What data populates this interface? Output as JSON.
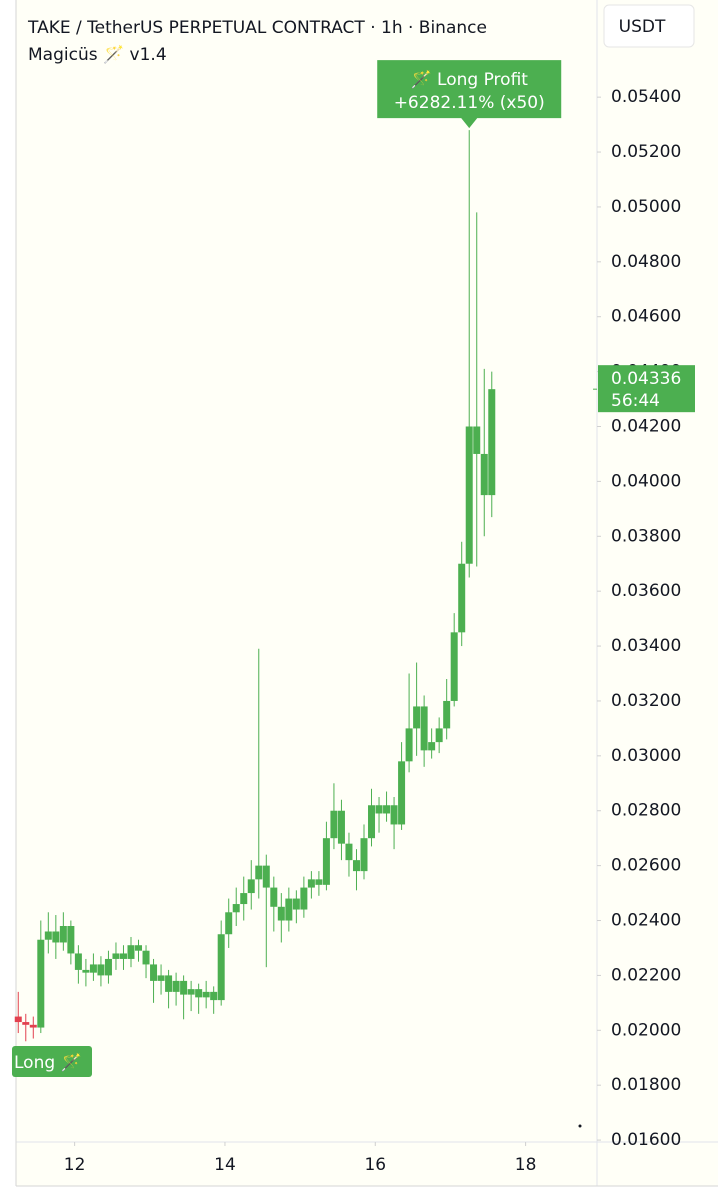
{
  "chart_data": {
    "type": "candlestick",
    "title": "TAKE / TetherUS PERPETUAL CONTRACT · 1h · Binance",
    "subtitle": "Magicüs 🪄 v1.4",
    "y_axis_label": "USDT",
    "x": [
      11.25,
      11.35,
      11.45,
      11.55,
      11.65,
      11.75,
      11.85,
      11.95,
      12.05,
      12.15,
      12.25,
      12.35,
      12.45,
      12.55,
      12.65,
      12.75,
      12.85,
      12.95,
      13.05,
      13.15,
      13.25,
      13.35,
      13.45,
      13.55,
      13.65,
      13.75,
      13.85,
      13.95,
      14.05,
      14.15,
      14.25,
      14.35,
      14.45,
      14.55,
      14.65,
      14.75,
      14.85,
      14.95,
      15.05,
      15.15,
      15.25,
      15.35,
      15.45,
      15.55,
      15.65,
      15.75,
      15.85,
      15.95,
      16.05,
      16.15,
      16.25,
      16.35,
      16.45,
      16.55,
      16.65,
      16.75,
      16.85,
      16.95,
      17.05,
      17.15,
      17.25,
      17.35,
      17.45,
      17.55
    ],
    "open": [
      0.0205,
      0.0203,
      0.0202,
      0.0201,
      0.0233,
      0.0236,
      0.0232,
      0.0238,
      0.0228,
      0.0222,
      0.0221,
      0.0224,
      0.022,
      0.0226,
      0.0228,
      0.0226,
      0.0231,
      0.0229,
      0.0224,
      0.0218,
      0.022,
      0.0214,
      0.0218,
      0.0213,
      0.0215,
      0.0212,
      0.0214,
      0.0211,
      0.0235,
      0.0243,
      0.0246,
      0.025,
      0.0255,
      0.026,
      0.0252,
      0.0245,
      0.024,
      0.0248,
      0.0244,
      0.0252,
      0.0255,
      0.0253,
      0.027,
      0.028,
      0.0268,
      0.0262,
      0.0258,
      0.027,
      0.0282,
      0.0279,
      0.0282,
      0.0275,
      0.0298,
      0.031,
      0.0318,
      0.0302,
      0.0305,
      0.031,
      0.032,
      0.0345,
      0.037,
      0.042,
      0.041,
      0.0395
    ],
    "high": [
      0.0214,
      0.0206,
      0.0205,
      0.024,
      0.0243,
      0.0242,
      0.0243,
      0.024,
      0.0231,
      0.0226,
      0.0228,
      0.0227,
      0.0229,
      0.0232,
      0.0231,
      0.0234,
      0.0233,
      0.0231,
      0.0226,
      0.0224,
      0.0222,
      0.0221,
      0.022,
      0.0218,
      0.0217,
      0.0218,
      0.0216,
      0.024,
      0.0248,
      0.0252,
      0.0256,
      0.0262,
      0.0339,
      0.0264,
      0.0256,
      0.025,
      0.0252,
      0.0251,
      0.0256,
      0.0258,
      0.0258,
      0.0276,
      0.029,
      0.0284,
      0.0272,
      0.0266,
      0.0275,
      0.0288,
      0.0285,
      0.0287,
      0.0285,
      0.0305,
      0.033,
      0.0334,
      0.0322,
      0.031,
      0.0314,
      0.0328,
      0.0352,
      0.0378,
      0.0528,
      0.0498,
      0.0441,
      0.044
    ],
    "low": [
      0.0199,
      0.0196,
      0.0197,
      0.0199,
      0.0228,
      0.0226,
      0.0229,
      0.0224,
      0.0217,
      0.0216,
      0.0218,
      0.0216,
      0.0217,
      0.0222,
      0.0222,
      0.0223,
      0.0225,
      0.0219,
      0.021,
      0.0213,
      0.0208,
      0.0209,
      0.0204,
      0.0207,
      0.0206,
      0.0208,
      0.0206,
      0.0209,
      0.023,
      0.0238,
      0.024,
      0.0244,
      0.0248,
      0.0223,
      0.0236,
      0.0232,
      0.0236,
      0.0239,
      0.0241,
      0.0248,
      0.0249,
      0.0251,
      0.0266,
      0.0262,
      0.0256,
      0.0251,
      0.0255,
      0.0267,
      0.0272,
      0.0276,
      0.0266,
      0.0273,
      0.0294,
      0.03,
      0.0296,
      0.0299,
      0.0301,
      0.0306,
      0.0318,
      0.034,
      0.0365,
      0.0369,
      0.038,
      0.0387
    ],
    "close": [
      0.0203,
      0.0202,
      0.0201,
      0.0233,
      0.0236,
      0.0232,
      0.0238,
      0.0228,
      0.0222,
      0.0221,
      0.0224,
      0.022,
      0.0226,
      0.0228,
      0.0226,
      0.0231,
      0.0229,
      0.0224,
      0.0218,
      0.022,
      0.0214,
      0.0218,
      0.0213,
      0.0215,
      0.0212,
      0.0214,
      0.0211,
      0.0235,
      0.0243,
      0.0246,
      0.025,
      0.0255,
      0.026,
      0.0252,
      0.0245,
      0.024,
      0.0248,
      0.0244,
      0.0252,
      0.0255,
      0.0253,
      0.027,
      0.028,
      0.0268,
      0.0262,
      0.0258,
      0.027,
      0.0282,
      0.0279,
      0.0282,
      0.0275,
      0.0298,
      0.031,
      0.0318,
      0.0302,
      0.0305,
      0.031,
      0.032,
      0.0345,
      0.037,
      0.042,
      0.041,
      0.0395,
      0.04336
    ],
    "color": "#4caf50",
    "pre_signal_color": "#e2404f",
    "signal_x": 11.5,
    "xlim": [
      11.22,
      18.95
    ],
    "xticks": [
      12,
      14,
      16,
      18
    ],
    "ylim": [
      0.01593,
      0.05754
    ],
    "yticks": [
      {
        "value": 0.016,
        "label": "0.01600"
      },
      {
        "value": 0.018,
        "label": "0.01800"
      },
      {
        "value": 0.02,
        "label": "0.02000"
      },
      {
        "value": 0.022,
        "label": "0.02200"
      },
      {
        "value": 0.024,
        "label": "0.02400"
      },
      {
        "value": 0.026,
        "label": "0.02600"
      },
      {
        "value": 0.028,
        "label": "0.02800"
      },
      {
        "value": 0.03,
        "label": "0.03000"
      },
      {
        "value": 0.032,
        "label": "0.03200"
      },
      {
        "value": 0.034,
        "label": "0.03400"
      },
      {
        "value": 0.036,
        "label": "0.03600"
      },
      {
        "value": 0.038,
        "label": "0.03800"
      },
      {
        "value": 0.04,
        "label": "0.04000"
      },
      {
        "value": 0.042,
        "label": "0.04200"
      },
      {
        "value": 0.044,
        "label": "0.04400"
      },
      {
        "value": 0.046,
        "label": "0.04600"
      },
      {
        "value": 0.048,
        "label": "0.04800"
      },
      {
        "value": 0.05,
        "label": "0.05000"
      },
      {
        "value": 0.052,
        "label": "0.05200"
      },
      {
        "value": 0.054,
        "label": "0.05400"
      }
    ],
    "last_price": {
      "value": 0.04336,
      "label": "0.04336",
      "countdown": "56:44"
    },
    "annotations": [
      {
        "lines": [
          "🪄 Long Profit",
          "+6282.11% (x50)"
        ]
      },
      {
        "lines": [
          "Long 🪄"
        ]
      }
    ],
    "grid": false
  }
}
